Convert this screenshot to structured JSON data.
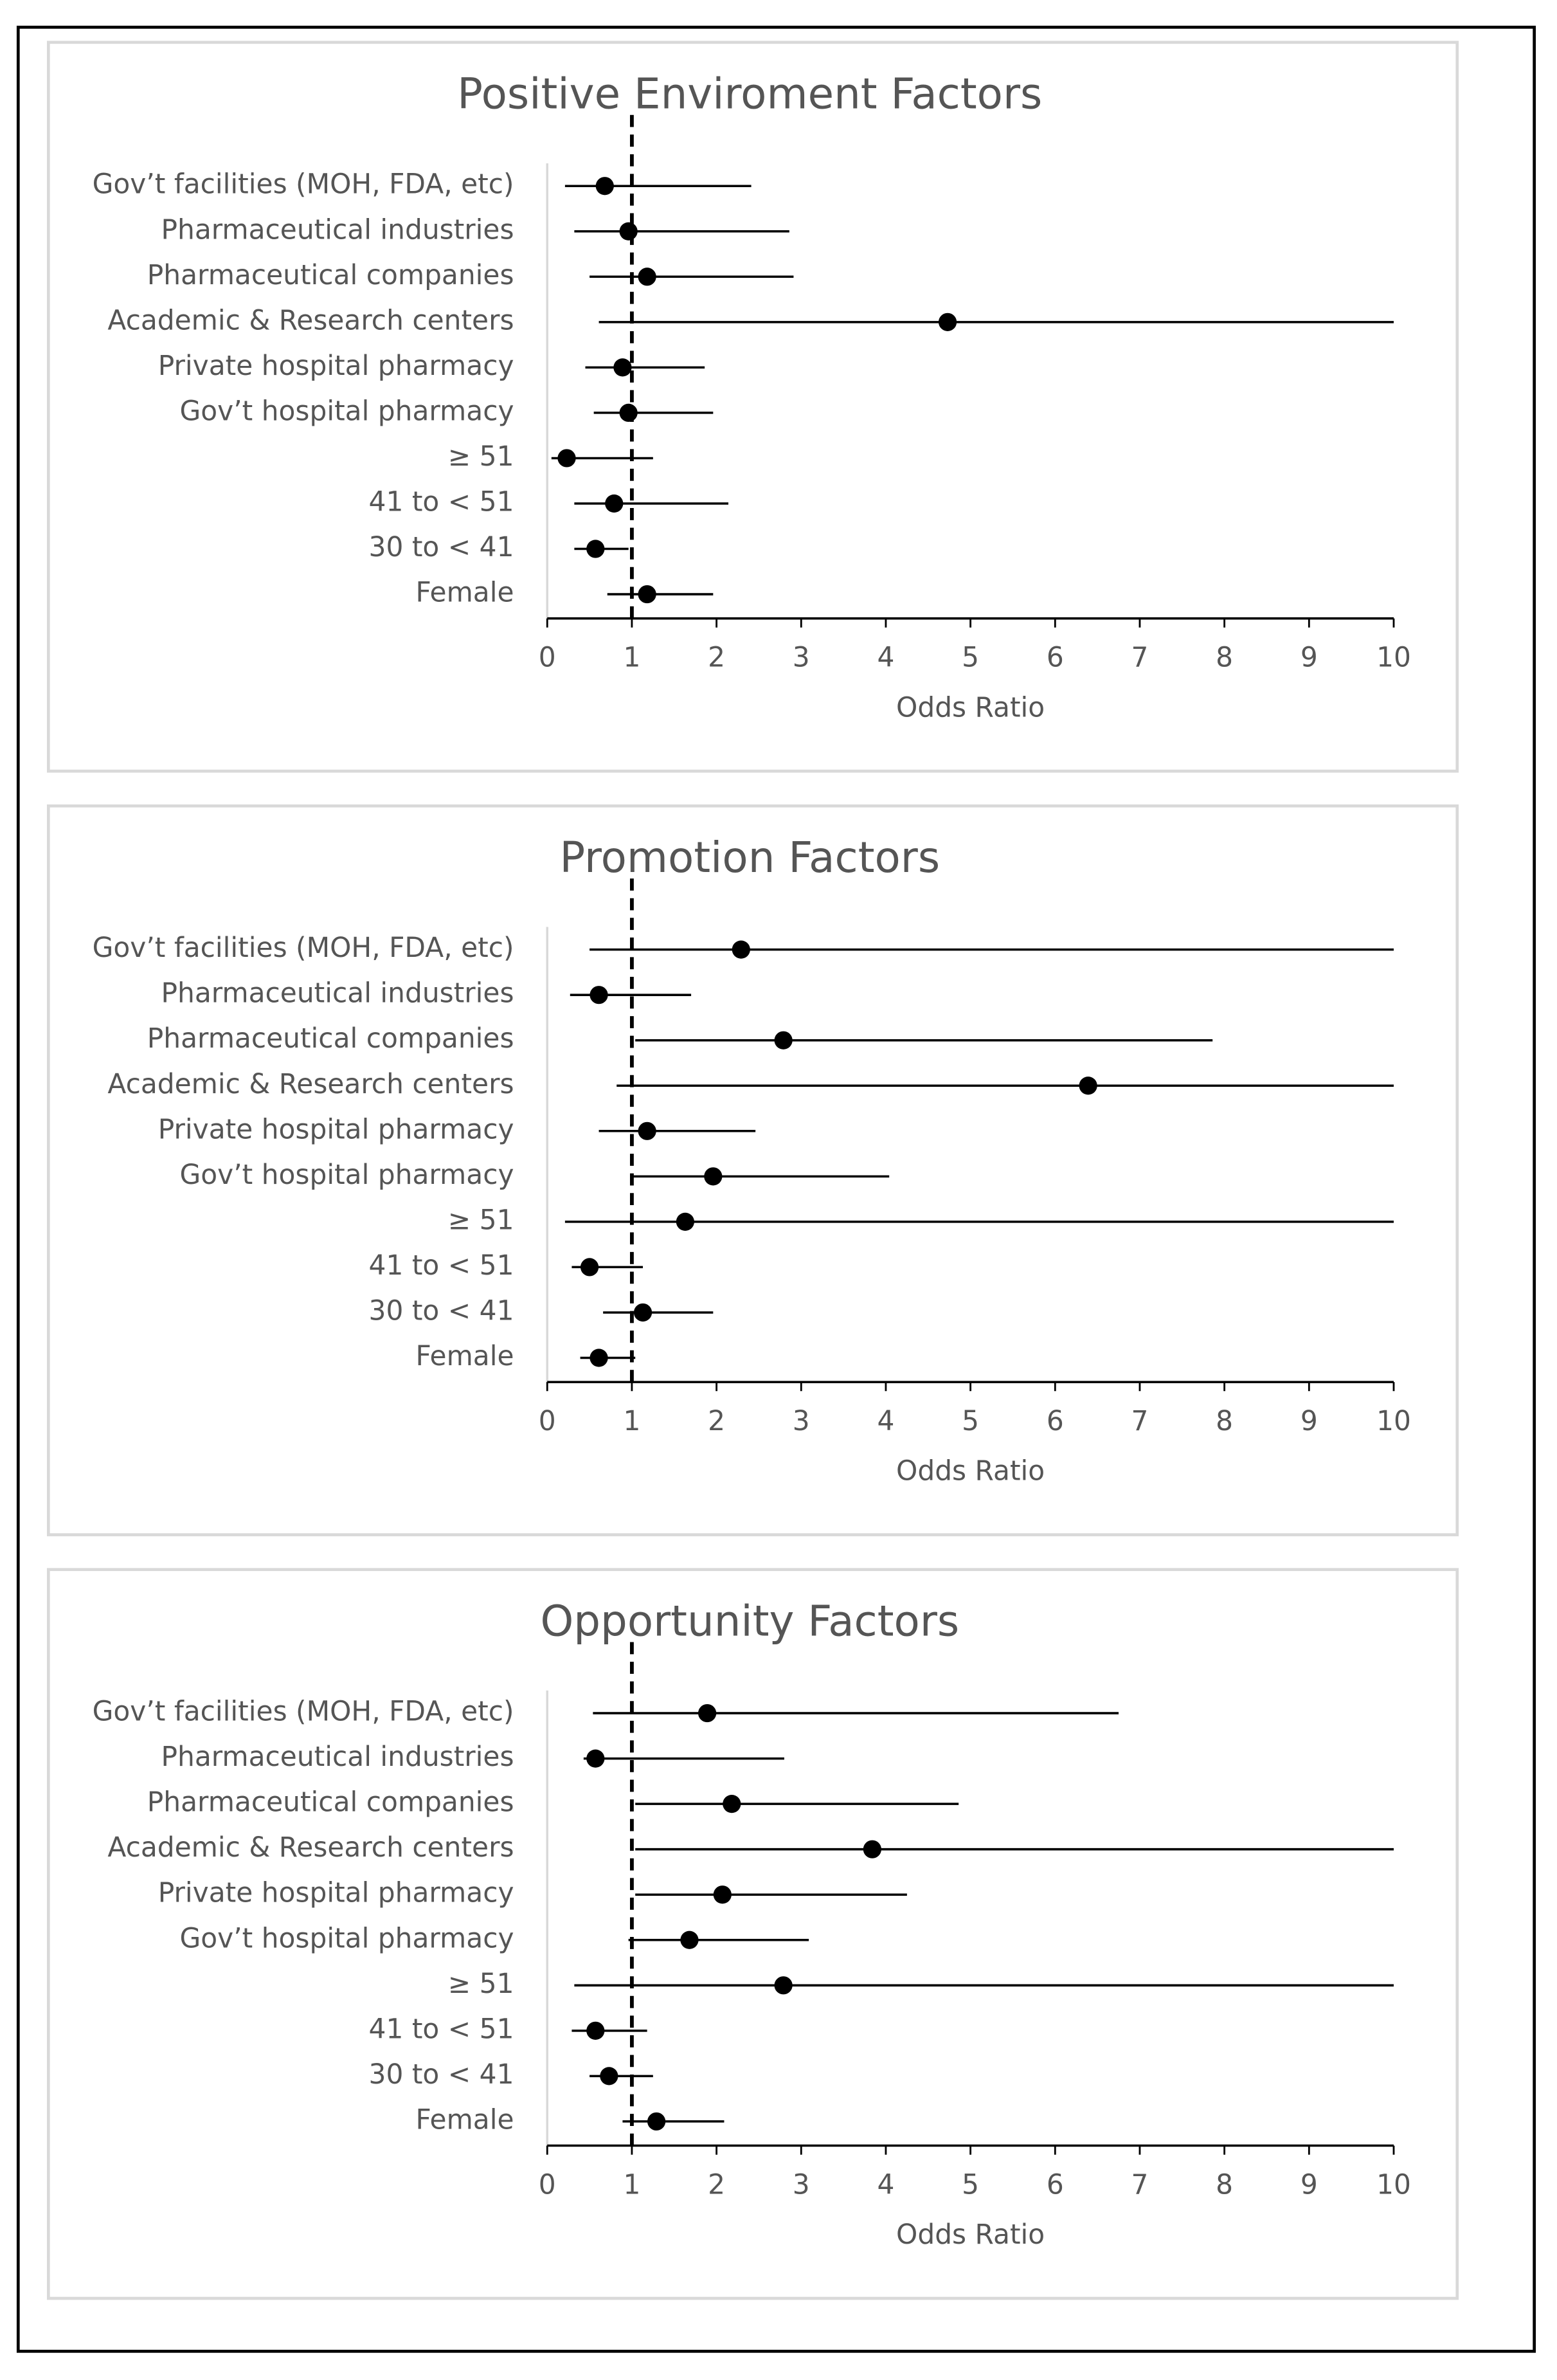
{
  "chart_data": [
    {
      "type": "forest",
      "title": "Positive Enviroment Factors",
      "xlabel": "Odds Ratio",
      "categories": [
        "Gov’t facilities (MOH, FDA, etc)",
        "Pharmaceutical industries",
        "Pharmaceutical companies",
        "Academic & Research centers",
        "Private hospital pharmacy",
        "Gov’t hospital pharmacy",
        "≥ 51",
        "41 to < 51",
        "30 to < 41",
        "Female"
      ],
      "values": [
        0.68,
        0.96,
        1.18,
        4.73,
        0.89,
        0.96,
        0.23,
        0.79,
        0.57,
        1.18
      ],
      "lower": [
        0.21,
        0.32,
        0.5,
        0.61,
        0.45,
        0.55,
        0.05,
        0.32,
        0.32,
        0.71
      ],
      "upper": [
        2.41,
        2.86,
        2.91,
        10,
        1.86,
        1.96,
        1.25,
        2.14,
        0.96,
        1.96
      ],
      "xlim": [
        0,
        10
      ],
      "xticks": [
        0,
        1,
        2,
        3,
        4,
        5,
        6,
        7,
        8,
        9,
        10
      ],
      "reference_line": 1,
      "color": "#000000"
    },
    {
      "type": "forest",
      "title": "Promotion Factors",
      "xlabel": "Odds Ratio",
      "categories": [
        "Gov’t facilities (MOH, FDA, etc)",
        "Pharmaceutical industries",
        "Pharmaceutical companies",
        "Academic & Research centers",
        "Private hospital pharmacy",
        "Gov’t hospital pharmacy",
        "≥ 51",
        "41 to < 51",
        "30 to < 41",
        "Female"
      ],
      "values": [
        2.29,
        0.61,
        2.79,
        6.39,
        1.18,
        1.96,
        1.63,
        0.5,
        1.13,
        0.61
      ],
      "lower": [
        0.5,
        0.27,
        1.04,
        0.82,
        0.61,
        1.0,
        0.21,
        0.29,
        0.66,
        0.39
      ],
      "upper": [
        10,
        1.7,
        7.86,
        10,
        2.46,
        4.04,
        10,
        1.13,
        1.96,
        1.04
      ],
      "xlim": [
        0,
        10
      ],
      "xticks": [
        0,
        1,
        2,
        3,
        4,
        5,
        6,
        7,
        8,
        9,
        10
      ],
      "reference_line": 1,
      "color": "#000000"
    },
    {
      "type": "forest",
      "title": "Opportunity Factors",
      "xlabel": "Odds Ratio",
      "categories": [
        "Gov’t facilities (MOH, FDA, etc)",
        "Pharmaceutical industries",
        "Pharmaceutical companies",
        "Academic & Research centers",
        "Private hospital pharmacy",
        "Gov’t hospital pharmacy",
        "≥ 51",
        "41 to < 51",
        "30 to < 41",
        "Female"
      ],
      "values": [
        1.89,
        0.57,
        2.18,
        3.84,
        2.07,
        1.68,
        2.79,
        0.57,
        0.73,
        1.29
      ],
      "lower": [
        0.54,
        0.43,
        1.04,
        1.04,
        1.04,
        0.96,
        0.32,
        0.29,
        0.5,
        0.89
      ],
      "upper": [
        6.75,
        2.8,
        4.86,
        10,
        4.25,
        3.09,
        10,
        1.18,
        1.25,
        2.09
      ],
      "xlim": [
        0,
        10
      ],
      "xticks": [
        0,
        1,
        2,
        3,
        4,
        5,
        6,
        7,
        8,
        9,
        10
      ],
      "reference_line": 1,
      "color": "#000000"
    }
  ]
}
